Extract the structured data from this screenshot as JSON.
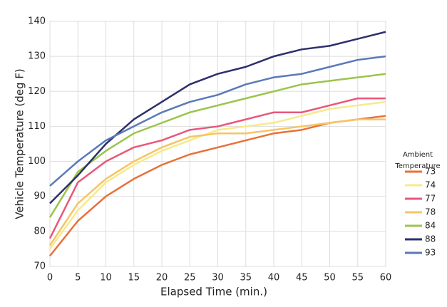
{
  "chart_data": {
    "type": "line",
    "x_label": "Elapsed Time (min.)",
    "y_label": "Vehicle Temperature (deg F)",
    "legend_title": "Ambient Temperature",
    "x": [
      0,
      5,
      10,
      15,
      20,
      25,
      30,
      35,
      40,
      45,
      50,
      55,
      60
    ],
    "xlim": [
      0,
      60
    ],
    "xticks": [
      0,
      5,
      10,
      15,
      20,
      25,
      30,
      35,
      40,
      45,
      50,
      55,
      60
    ],
    "ylim": [
      70,
      140
    ],
    "yticks": [
      70,
      80,
      90,
      100,
      110,
      120,
      130,
      140
    ],
    "grid": true,
    "legend": "right",
    "series": [
      {
        "name": "73",
        "color": "#e8703a",
        "values": [
          73,
          83,
          90,
          95,
          99,
          102,
          104,
          106,
          108,
          109,
          111,
          112,
          113
        ]
      },
      {
        "name": "74",
        "color": "#f7ea8a",
        "values": [
          75,
          86,
          94,
          99,
          103,
          106,
          109,
          110,
          111,
          113,
          115,
          116,
          117
        ]
      },
      {
        "name": "77",
        "color": "#e8577a",
        "values": [
          78,
          94,
          100,
          104,
          106,
          109,
          110,
          112,
          114,
          114,
          116,
          118,
          118
        ]
      },
      {
        "name": "78",
        "color": "#f5c565",
        "values": [
          76,
          88,
          95,
          100,
          104,
          107,
          108,
          108,
          109,
          110,
          111,
          112,
          112
        ]
      },
      {
        "name": "84",
        "color": "#9cc44a",
        "values": [
          84,
          97,
          103,
          108,
          111,
          114,
          116,
          118,
          120,
          122,
          123,
          124,
          125
        ]
      },
      {
        "name": "88",
        "color": "#2e2f6b",
        "values": [
          88,
          96,
          105,
          112,
          117,
          122,
          125,
          127,
          130,
          132,
          133,
          135,
          137
        ]
      },
      {
        "name": "93",
        "color": "#5a79b8",
        "values": [
          93,
          100,
          106,
          110,
          114,
          117,
          119,
          122,
          124,
          125,
          127,
          129,
          130
        ]
      }
    ]
  }
}
